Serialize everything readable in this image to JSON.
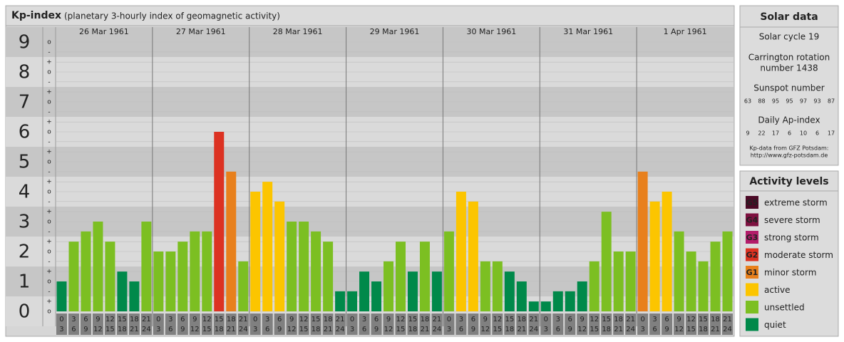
{
  "chart_data": {
    "type": "bar",
    "title": "Kp-index",
    "subtitle": "(planetary 3-hourly index of geomagnetic activity)",
    "ylim": [
      -0.5,
      9.5
    ],
    "yticks": [
      0,
      1,
      2,
      3,
      4,
      5,
      6,
      7,
      8,
      9
    ],
    "yminor": [
      {
        "value": 0,
        "label": "o"
      },
      {
        "value": 0.33,
        "label": "+"
      },
      {
        "value": 0.67,
        "label": "-"
      },
      {
        "value": 1,
        "label": "o"
      },
      {
        "value": 1.33,
        "label": "+"
      },
      {
        "value": 1.67,
        "label": "-"
      },
      {
        "value": 2,
        "label": "o"
      },
      {
        "value": 2.33,
        "label": "+"
      },
      {
        "value": 2.67,
        "label": "-"
      },
      {
        "value": 3,
        "label": "o"
      },
      {
        "value": 3.33,
        "label": "+"
      },
      {
        "value": 3.67,
        "label": "-"
      },
      {
        "value": 4,
        "label": "o"
      },
      {
        "value": 4.33,
        "label": "+"
      },
      {
        "value": 4.67,
        "label": "-"
      },
      {
        "value": 5,
        "label": "o"
      },
      {
        "value": 5.33,
        "label": "+"
      },
      {
        "value": 5.67,
        "label": "-"
      },
      {
        "value": 6,
        "label": "o"
      },
      {
        "value": 6.33,
        "label": "+"
      },
      {
        "value": 6.67,
        "label": "-"
      },
      {
        "value": 7,
        "label": "o"
      },
      {
        "value": 7.33,
        "label": "+"
      },
      {
        "value": 7.67,
        "label": "-"
      },
      {
        "value": 8,
        "label": "o"
      },
      {
        "value": 8.33,
        "label": "+"
      },
      {
        "value": 8.67,
        "label": "-"
      },
      {
        "value": 9,
        "label": "o"
      }
    ],
    "slots": [
      [
        "0",
        "3"
      ],
      [
        "3",
        "6"
      ],
      [
        "6",
        "9"
      ],
      [
        "9",
        "12"
      ],
      [
        "12",
        "15"
      ],
      [
        "15",
        "18"
      ],
      [
        "18",
        "21"
      ],
      [
        "21",
        "24"
      ]
    ],
    "days": [
      {
        "date": "26 Mar 1961",
        "values": [
          1,
          2.33,
          2.67,
          3,
          2.33,
          1.33,
          1,
          3
        ],
        "colors": [
          "#00894a",
          "#7cbf22",
          "#7cbf22",
          "#7cbf22",
          "#7cbf22",
          "#00894a",
          "#00894a",
          "#7cbf22"
        ]
      },
      {
        "date": "27 Mar 1961",
        "values": [
          2,
          2,
          2.33,
          2.67,
          2.67,
          6,
          4.67,
          1.67
        ],
        "colors": [
          "#7cbf22",
          "#7cbf22",
          "#7cbf22",
          "#7cbf22",
          "#7cbf22",
          "#dc3222",
          "#e8801c",
          "#7cbf22"
        ]
      },
      {
        "date": "28 Mar 1961",
        "values": [
          4,
          4.33,
          3.67,
          3,
          3,
          2.67,
          2.33,
          0.67
        ],
        "colors": [
          "#fcc500",
          "#fcc500",
          "#fcc500",
          "#7cbf22",
          "#7cbf22",
          "#7cbf22",
          "#7cbf22",
          "#00894a"
        ]
      },
      {
        "date": "29 Mar 1961",
        "values": [
          0.67,
          1.33,
          1,
          1.67,
          2.33,
          1.33,
          2.33,
          1.33
        ],
        "colors": [
          "#00894a",
          "#00894a",
          "#00894a",
          "#7cbf22",
          "#7cbf22",
          "#00894a",
          "#7cbf22",
          "#00894a"
        ]
      },
      {
        "date": "30 Mar 1961",
        "values": [
          2.67,
          4,
          3.67,
          1.67,
          1.67,
          1.33,
          1,
          0.33
        ],
        "colors": [
          "#7cbf22",
          "#fcc500",
          "#fcc500",
          "#7cbf22",
          "#7cbf22",
          "#00894a",
          "#00894a",
          "#00894a"
        ]
      },
      {
        "date": "31 Mar 1961",
        "values": [
          0.33,
          0.67,
          0.67,
          1,
          1.67,
          3.33,
          2,
          2
        ],
        "colors": [
          "#00894a",
          "#00894a",
          "#00894a",
          "#00894a",
          "#7cbf22",
          "#7cbf22",
          "#7cbf22",
          "#7cbf22"
        ]
      },
      {
        "date": "1 Apr 1961",
        "values": [
          4.67,
          3.67,
          4,
          2.67,
          2,
          1.67,
          2.33,
          2.67
        ],
        "colors": [
          "#e8801c",
          "#fcc500",
          "#fcc500",
          "#7cbf22",
          "#7cbf22",
          "#7cbf22",
          "#7cbf22",
          "#7cbf22"
        ]
      }
    ]
  },
  "solar": {
    "title": "Solar data",
    "cycle": "Solar cycle 19",
    "carrington": [
      "Carrington rotation",
      "number 1438"
    ],
    "sunspot_title": "Sunspot number",
    "sunspot": [
      63,
      88,
      95,
      95,
      97,
      93,
      87
    ],
    "ap_title": "Daily Ap-index",
    "ap": [
      9,
      22,
      17,
      6,
      10,
      6,
      17
    ],
    "source": [
      "Kp-data from GFZ Potsdam:",
      "http://www.gfz-potsdam.de"
    ]
  },
  "levels": {
    "title": "Activity levels",
    "items": [
      {
        "badge": "G5",
        "label": "extreme storm",
        "color": "#4b0a26"
      },
      {
        "badge": "G4",
        "label": "severe storm",
        "color": "#7d1140"
      },
      {
        "badge": "G3",
        "label": "strong storm",
        "color": "#b31c6a"
      },
      {
        "badge": "G2",
        "label": "moderate storm",
        "color": "#dc3222"
      },
      {
        "badge": "G1",
        "label": "minor storm",
        "color": "#e8801c"
      },
      {
        "badge": null,
        "label": "active",
        "color": "#fcc500"
      },
      {
        "badge": null,
        "label": "unsettled",
        "color": "#7cbf22"
      },
      {
        "badge": null,
        "label": "quiet",
        "color": "#00894a"
      }
    ]
  }
}
